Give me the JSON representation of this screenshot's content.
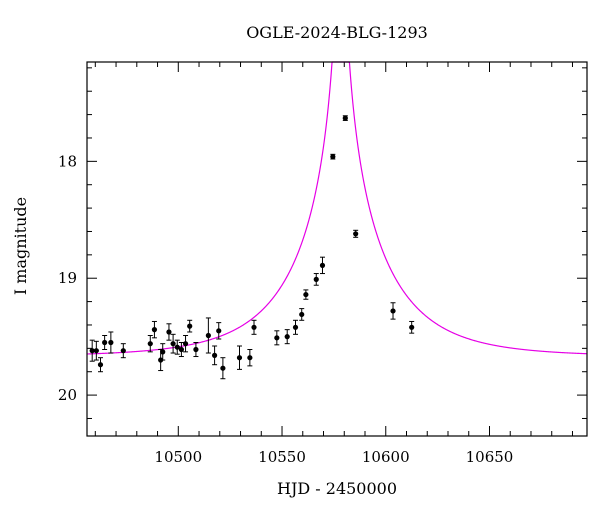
{
  "chart_data": {
    "type": "scatter",
    "title": "OGLE-2024-BLG-1293",
    "xlabel": "HJD - 2450000",
    "ylabel": "I magnitude",
    "xlim": [
      10456,
      10697
    ],
    "ylim": [
      20.35,
      17.15
    ],
    "y_inverted": true,
    "x_ticks": [
      10500,
      10550,
      10600,
      10650
    ],
    "y_ticks": [
      18,
      19,
      20
    ],
    "colors": {
      "points": "#000000",
      "model": "#e600e6"
    },
    "points": [
      {
        "x": 10458.5,
        "y": 19.62,
        "err": 0.09
      },
      {
        "x": 10460.5,
        "y": 19.62,
        "err": 0.08
      },
      {
        "x": 10462.5,
        "y": 19.74,
        "err": 0.06
      },
      {
        "x": 10464.5,
        "y": 19.55,
        "err": 0.06
      },
      {
        "x": 10467.5,
        "y": 19.55,
        "err": 0.09
      },
      {
        "x": 10473.5,
        "y": 19.62,
        "err": 0.06
      },
      {
        "x": 10486.5,
        "y": 19.56,
        "err": 0.07
      },
      {
        "x": 10488.5,
        "y": 19.44,
        "err": 0.07
      },
      {
        "x": 10491.5,
        "y": 19.7,
        "err": 0.09
      },
      {
        "x": 10492.5,
        "y": 19.63,
        "err": 0.07
      },
      {
        "x": 10495.5,
        "y": 19.46,
        "err": 0.07
      },
      {
        "x": 10497.5,
        "y": 19.56,
        "err": 0.08
      },
      {
        "x": 10499.5,
        "y": 19.59,
        "err": 0.06
      },
      {
        "x": 10501.5,
        "y": 19.61,
        "err": 0.06
      },
      {
        "x": 10503.5,
        "y": 19.56,
        "err": 0.07
      },
      {
        "x": 10505.5,
        "y": 19.41,
        "err": 0.05
      },
      {
        "x": 10508.5,
        "y": 19.61,
        "err": 0.06
      },
      {
        "x": 10514.5,
        "y": 19.49,
        "err": 0.15
      },
      {
        "x": 10517.5,
        "y": 19.66,
        "err": 0.08
      },
      {
        "x": 10519.5,
        "y": 19.45,
        "err": 0.07
      },
      {
        "x": 10521.5,
        "y": 19.77,
        "err": 0.09
      },
      {
        "x": 10529.5,
        "y": 19.68,
        "err": 0.1
      },
      {
        "x": 10534.5,
        "y": 19.68,
        "err": 0.07
      },
      {
        "x": 10536.5,
        "y": 19.42,
        "err": 0.06
      },
      {
        "x": 10547.5,
        "y": 19.51,
        "err": 0.06
      },
      {
        "x": 10552.5,
        "y": 19.5,
        "err": 0.06
      },
      {
        "x": 10556.5,
        "y": 19.42,
        "err": 0.06
      },
      {
        "x": 10559.5,
        "y": 19.31,
        "err": 0.05
      },
      {
        "x": 10561.5,
        "y": 19.14,
        "err": 0.04
      },
      {
        "x": 10566.5,
        "y": 19.01,
        "err": 0.05
      },
      {
        "x": 10569.5,
        "y": 18.89,
        "err": 0.07
      },
      {
        "x": 10574.5,
        "y": 17.96,
        "err": 0.02
      },
      {
        "x": 10580.5,
        "y": 17.63,
        "err": 0.02
      },
      {
        "x": 10585.5,
        "y": 18.62,
        "err": 0.03
      },
      {
        "x": 10603.5,
        "y": 19.28,
        "err": 0.07
      },
      {
        "x": 10612.5,
        "y": 19.42,
        "err": 0.05
      }
    ],
    "model": {
      "type": "pspl",
      "t0": 10578.3,
      "tE": 43,
      "u0": 0.015,
      "baseline": 19.67
    }
  }
}
